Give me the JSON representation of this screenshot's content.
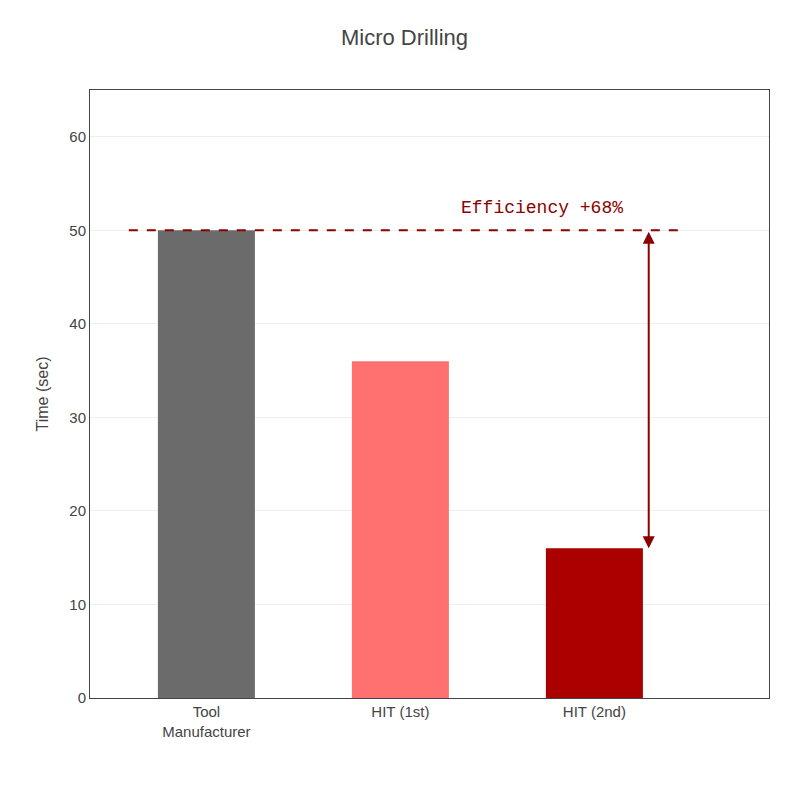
{
  "chart_data": {
    "type": "bar",
    "title": "Micro Drilling",
    "categories": [
      "Tool\nManufacturer",
      "HIT (1st)",
      "HIT (2nd)"
    ],
    "values": [
      50,
      36,
      16
    ],
    "colors": [
      "#6B6B6B",
      "#FF7070",
      "#AA0000"
    ],
    "ylabel": "Time (sec)",
    "ylim": [
      0,
      65
    ],
    "yticks": [
      0,
      10,
      20,
      30,
      40,
      50,
      60
    ],
    "grid": true,
    "reference_line": {
      "value": 50,
      "color": "#8B0000",
      "line_style": "dashed"
    },
    "arrow": {
      "from": 50,
      "to": 16,
      "color": "#8B0000"
    },
    "annotations": [
      {
        "text": "Efficiency +68%",
        "color": "#8B0000"
      }
    ]
  }
}
